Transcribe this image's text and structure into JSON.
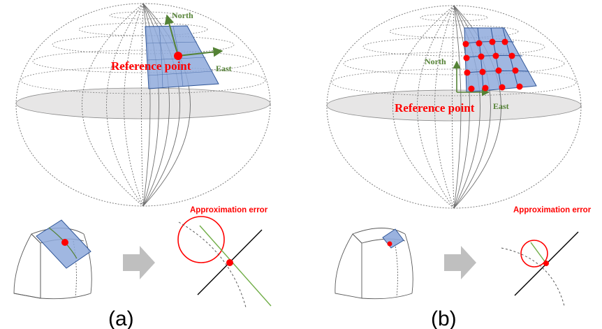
{
  "panel_a": {
    "north_label": "North",
    "east_label": "East",
    "reference_label": "Reference point",
    "error_label": "Approximation error",
    "caption": "(a)"
  },
  "panel_b": {
    "north_label": "North",
    "east_label": "East",
    "reference_label": "Reference point",
    "error_label": "Approximation error",
    "caption": "(b)"
  },
  "colors": {
    "accent_red": "#ff0000",
    "axis_green": "#548235",
    "patch_fill": "#8faadc",
    "patch_stroke": "#2f5597",
    "equator_fill": "#e7e6e6",
    "arrow_gray": "#bfbfbf",
    "wire_gray": "#7f7f7f"
  }
}
